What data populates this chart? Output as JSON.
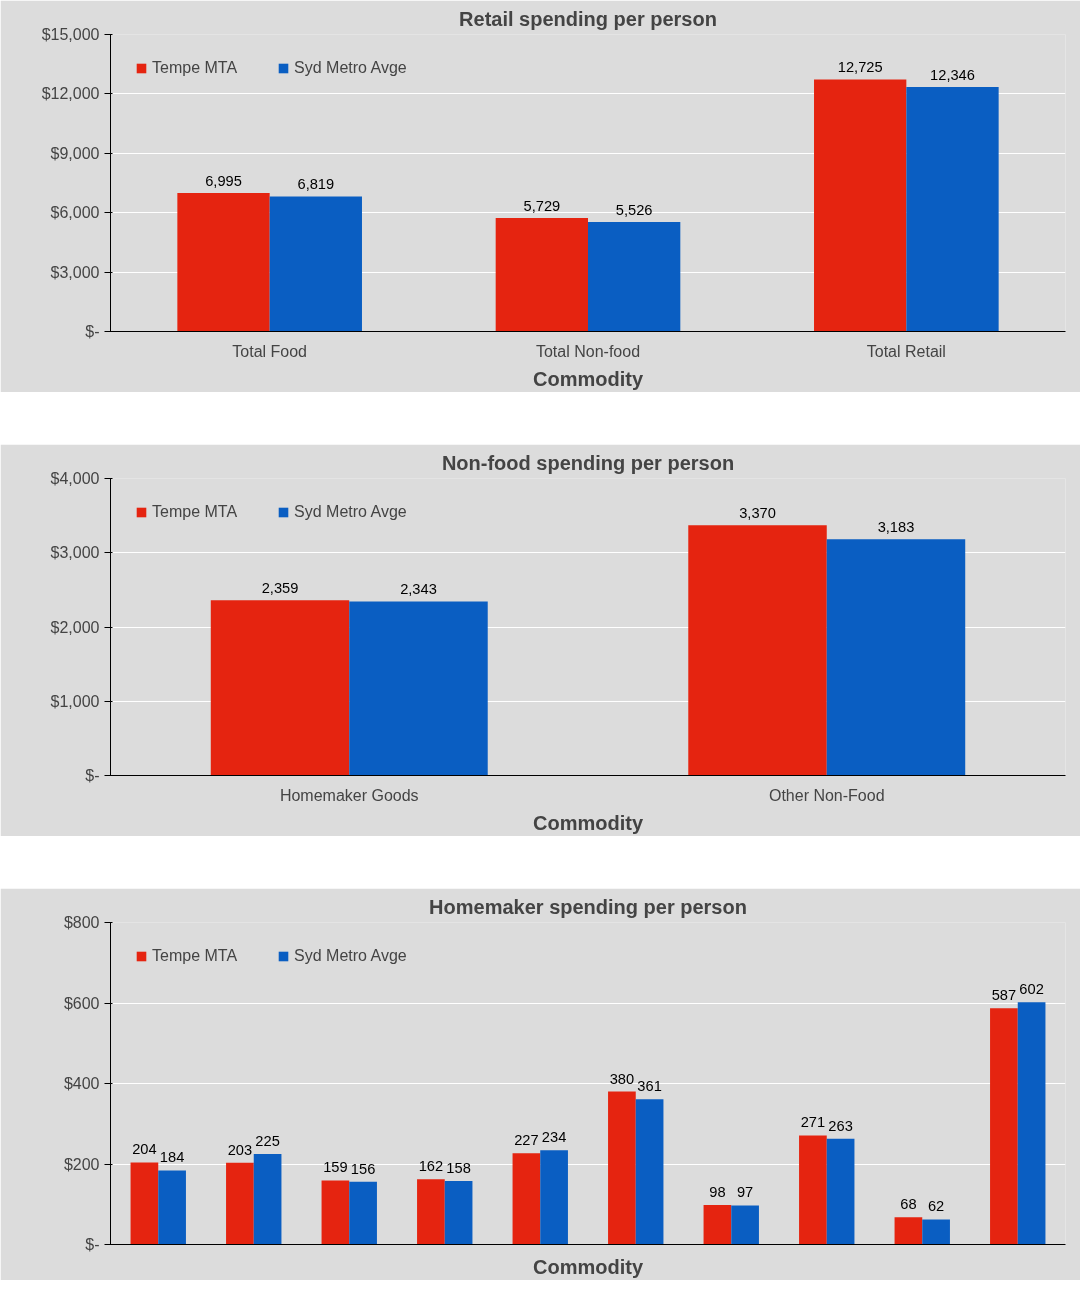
{
  "chart_data": [
    {
      "type": "bar",
      "title": "Retail spending per person",
      "xlabel": "Commodity",
      "categories": [
        "Total Food",
        "Total Non-food",
        "Total Retail"
      ],
      "series": [
        {
          "name": "Tempe MTA",
          "color": "#e52410",
          "values": [
            6995,
            5729,
            12725
          ],
          "value_labels": [
            "6,995",
            "5,729",
            "12,725"
          ]
        },
        {
          "name": "Syd Metro Avge",
          "color": "#0a5ec2",
          "values": [
            6819,
            5526,
            12346
          ],
          "value_labels": [
            "6,819",
            "5,526",
            "12,346"
          ]
        }
      ],
      "ylim": [
        0,
        15000
      ],
      "yticks": [
        {
          "value": 0,
          "label": "$-"
        },
        {
          "value": 3000,
          "label": "$3,000"
        },
        {
          "value": 6000,
          "label": "$6,000"
        },
        {
          "value": 9000,
          "label": "$9,000"
        },
        {
          "value": 12000,
          "label": "$12,000"
        },
        {
          "value": 15000,
          "label": "$15,000"
        }
      ],
      "grid": "y",
      "legend": "top left"
    },
    {
      "type": "bar",
      "title": "Non-food spending per person",
      "xlabel": "Commodity",
      "categories": [
        "Homemaker Goods",
        "Other Non-Food"
      ],
      "series": [
        {
          "name": "Tempe MTA",
          "color": "#e52410",
          "values": [
            2359,
            3370
          ],
          "value_labels": [
            "2,359",
            "3,370"
          ]
        },
        {
          "name": "Syd Metro Avge",
          "color": "#0a5ec2",
          "values": [
            2343,
            3183
          ],
          "value_labels": [
            "2,343",
            "3,183"
          ]
        }
      ],
      "ylim": [
        0,
        4000
      ],
      "yticks": [
        {
          "value": 0,
          "label": "$-"
        },
        {
          "value": 1000,
          "label": "$1,000"
        },
        {
          "value": 2000,
          "label": "$2,000"
        },
        {
          "value": 3000,
          "label": "$3,000"
        },
        {
          "value": 4000,
          "label": "$4,000"
        }
      ],
      "grid": "y",
      "legend": "top left"
    },
    {
      "type": "bar",
      "title": "Homemaker spending per person",
      "xlabel": "Commodity",
      "categories": [
        null,
        null,
        null,
        null,
        null,
        null,
        null,
        null,
        null,
        null
      ],
      "series": [
        {
          "name": "Tempe MTA",
          "color": "#e52410",
          "values": [
            204,
            203,
            159,
            162,
            227,
            380,
            98,
            271,
            68,
            587
          ]
        },
        {
          "name": "Syd Metro Avge",
          "color": "#0a5ec2",
          "values": [
            184,
            225,
            156,
            158,
            234,
            361,
            97,
            263,
            62,
            602
          ]
        }
      ],
      "ylim": [
        0,
        800
      ],
      "yticks": [
        {
          "value": 0,
          "label": "$-"
        },
        {
          "value": 200,
          "label": "$200"
        },
        {
          "value": 400,
          "label": "$400"
        },
        {
          "value": 600,
          "label": "$600"
        },
        {
          "value": 800,
          "label": "$800"
        }
      ],
      "grid": "y",
      "legend": "top left",
      "data_labels": true
    }
  ]
}
